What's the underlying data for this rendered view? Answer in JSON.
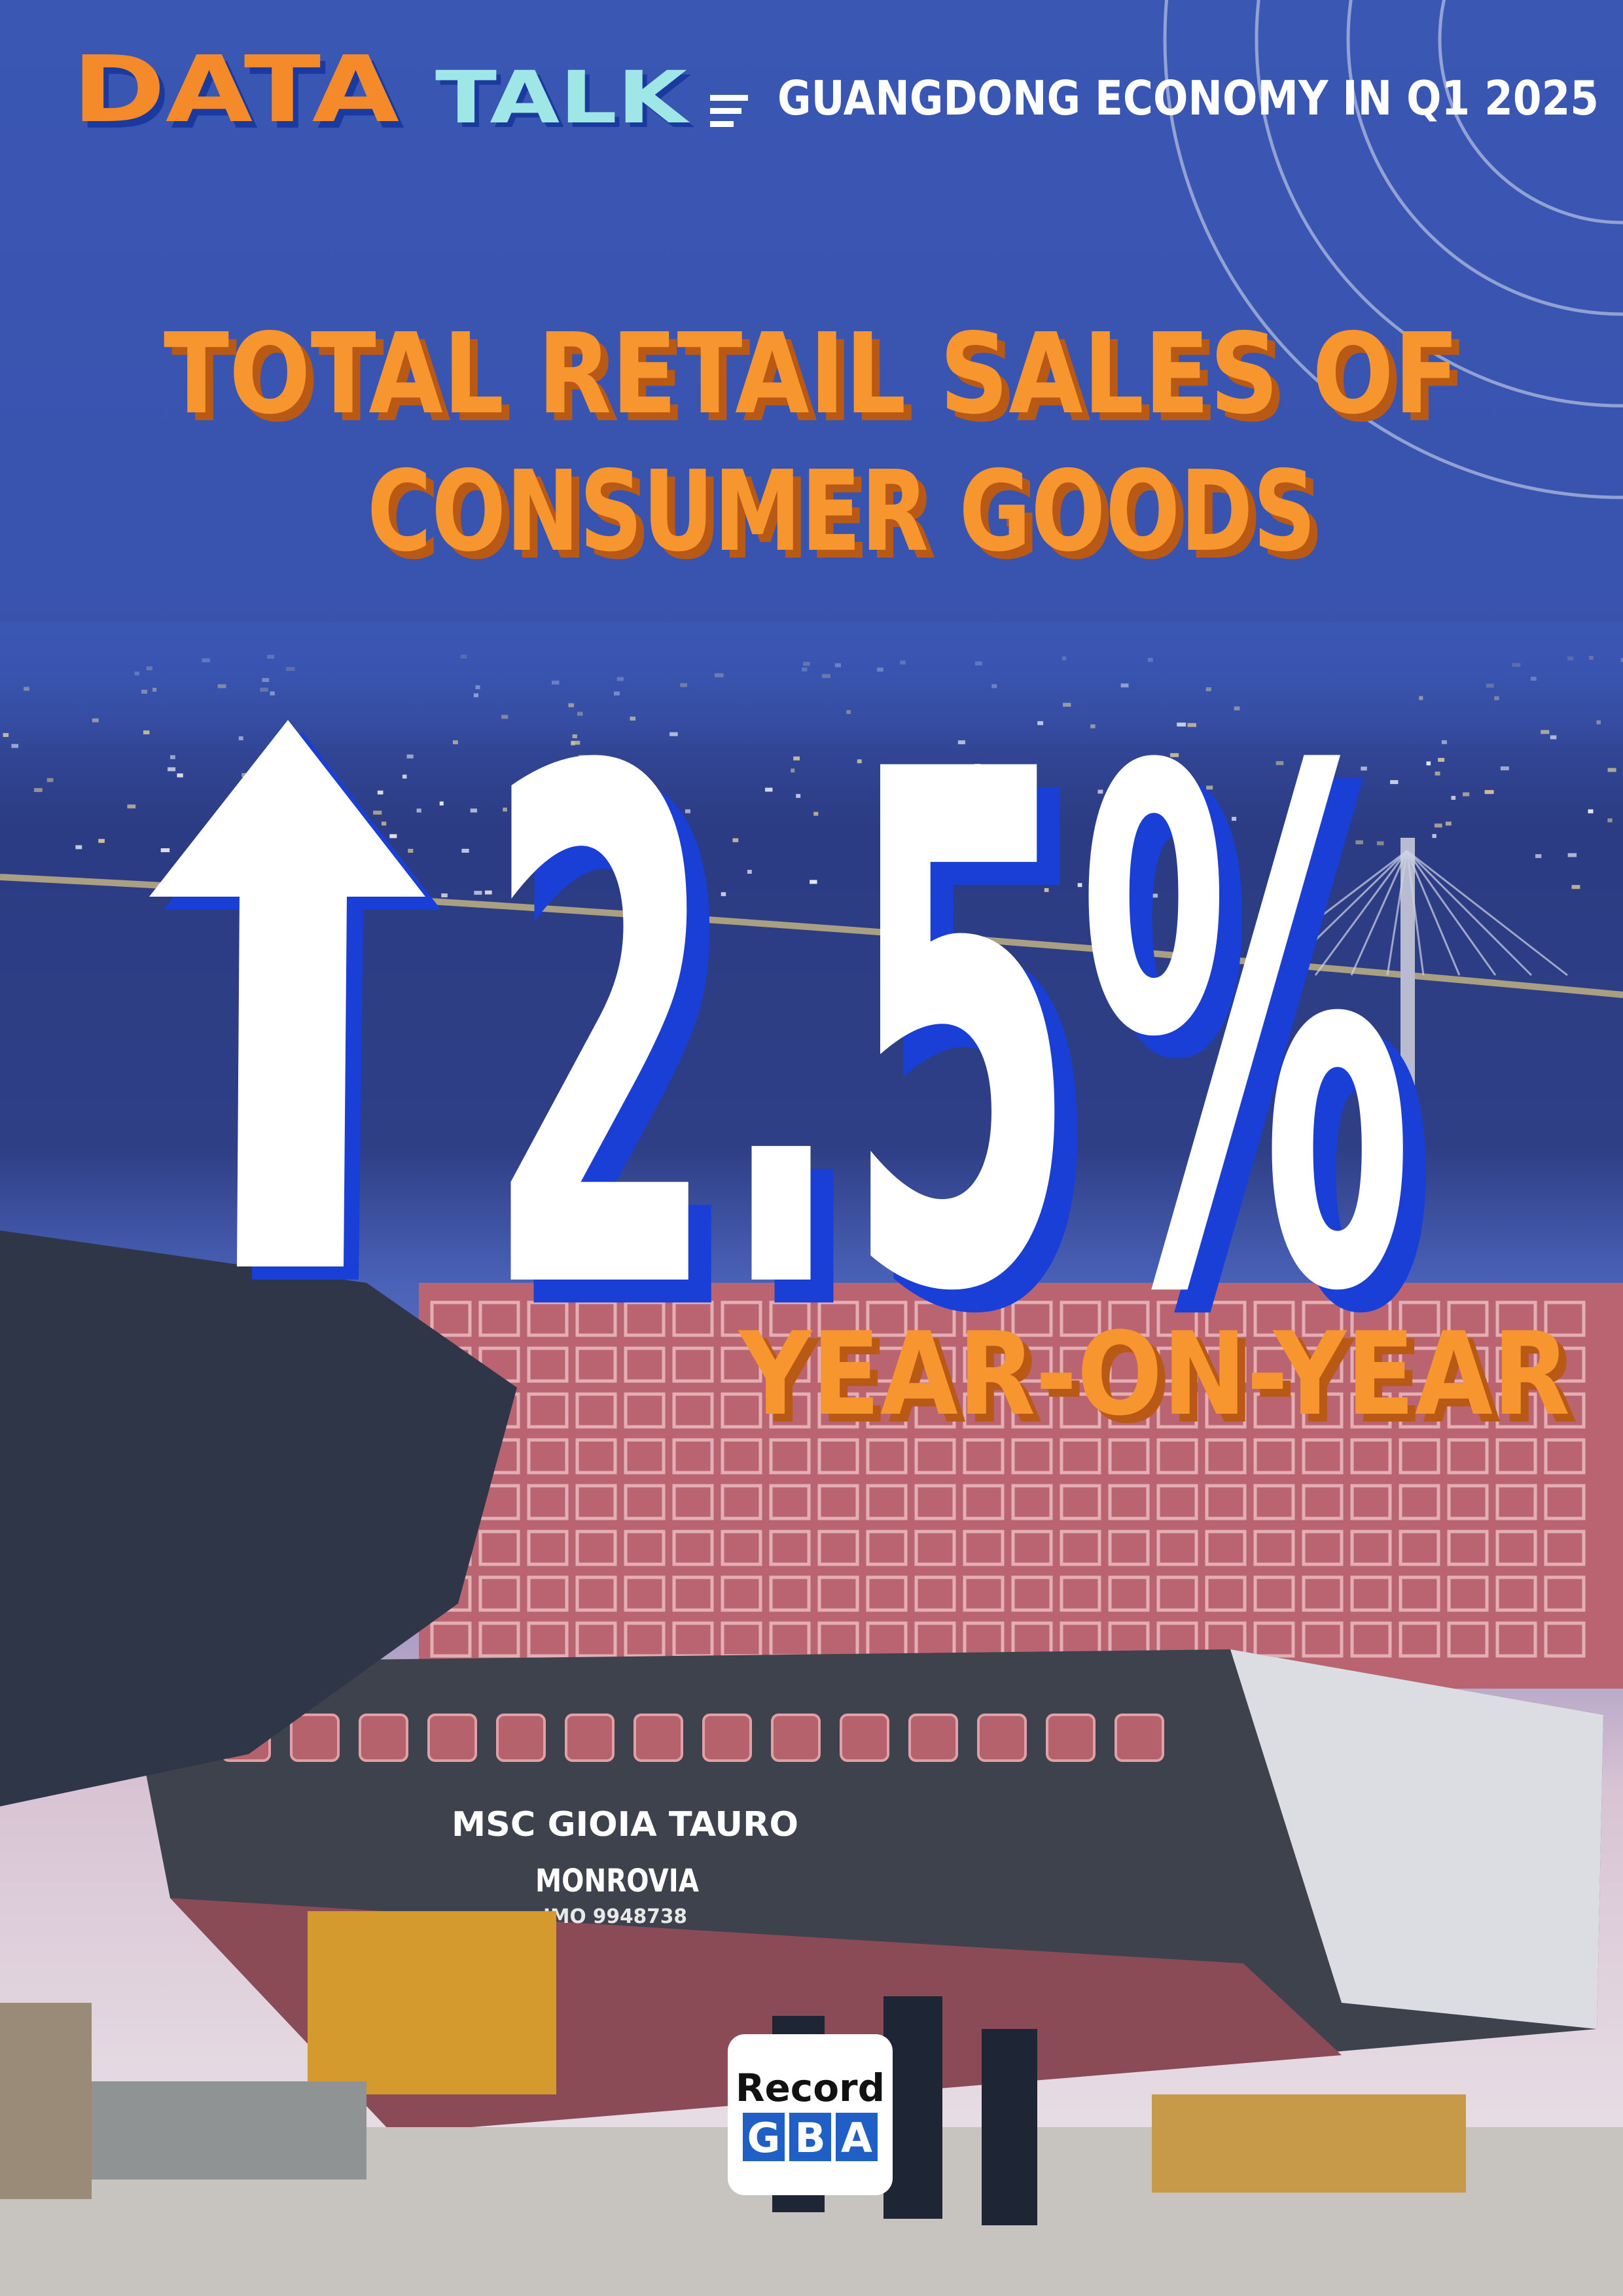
{
  "header": {
    "brand": [
      "DATA",
      "TALK"
    ],
    "subtitle": "GUANGDONG ECONOMY IN Q1 2025"
  },
  "headline": {
    "lines": [
      "TOTAL RETAIL SALES OF",
      "CONSUMER GOODS"
    ]
  },
  "stat": {
    "value": "2.5%",
    "caption": "YEAR-ON-YEAR"
  },
  "photo_text": {
    "ship_name": "MSC GIOIA TAURO",
    "port": "MONROVIA",
    "imo": "IMO 9948738"
  },
  "logo": {
    "top": "Record",
    "bottom": [
      "G",
      "B",
      "A"
    ]
  }
}
